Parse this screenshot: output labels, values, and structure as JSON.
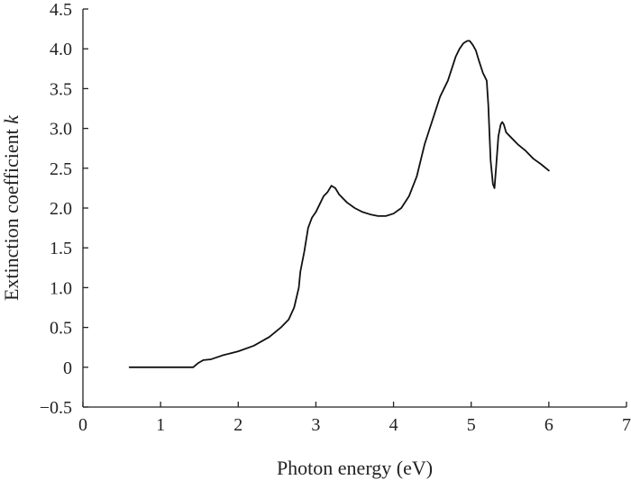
{
  "chart_data": {
    "type": "line",
    "title": "",
    "xlabel": "Photon energy (eV)",
    "ylabel_main": "Extinction coefficient ",
    "ylabel_var": "k",
    "xlim": [
      0,
      7
    ],
    "ylim": [
      -0.5,
      4.5
    ],
    "x_ticks": [
      0,
      1,
      2,
      3,
      4,
      5,
      6,
      7
    ],
    "x_tick_labels": [
      "0",
      "1",
      "2",
      "3",
      "4",
      "5",
      "6",
      "7"
    ],
    "y_ticks": [
      -0.5,
      0,
      0.5,
      1.0,
      1.5,
      2.0,
      2.5,
      3.0,
      3.5,
      4.0,
      4.5
    ],
    "y_tick_labels": [
      "−0.5",
      "0",
      "0.5",
      "1.0",
      "1.5",
      "2.0",
      "2.5",
      "3.0",
      "3.5",
      "4.0",
      "4.5"
    ],
    "grid": false,
    "colors": {
      "line": "#111111",
      "axis": "#222222"
    },
    "series": [
      {
        "x": [
          0.6,
          1.0,
          1.42,
          1.48,
          1.55,
          1.65,
          1.8,
          2.0,
          2.2,
          2.4,
          2.55,
          2.65,
          2.72,
          2.78,
          2.8,
          2.82,
          2.85,
          2.9,
          2.95,
          3.0,
          3.05,
          3.1,
          3.15,
          3.2,
          3.25,
          3.3,
          3.4,
          3.5,
          3.6,
          3.7,
          3.8,
          3.9,
          4.0,
          4.1,
          4.2,
          4.3,
          4.4,
          4.5,
          4.6,
          4.7,
          4.8,
          4.85,
          4.9,
          4.95,
          4.98,
          5.02,
          5.06,
          5.1,
          5.15,
          5.2,
          5.22,
          5.25,
          5.28,
          5.3,
          5.32,
          5.35,
          5.38,
          5.4,
          5.42,
          5.45,
          5.5,
          5.6,
          5.7,
          5.8,
          5.9,
          6.0
        ],
        "y": [
          0.0,
          0.0,
          0.0,
          0.05,
          0.09,
          0.1,
          0.15,
          0.2,
          0.27,
          0.38,
          0.5,
          0.6,
          0.75,
          1.0,
          1.2,
          1.3,
          1.45,
          1.75,
          1.88,
          1.95,
          2.05,
          2.15,
          2.2,
          2.28,
          2.25,
          2.17,
          2.07,
          2.0,
          1.95,
          1.92,
          1.9,
          1.9,
          1.93,
          2.0,
          2.15,
          2.4,
          2.8,
          3.1,
          3.4,
          3.6,
          3.9,
          4.0,
          4.07,
          4.1,
          4.1,
          4.05,
          3.98,
          3.85,
          3.7,
          3.6,
          3.3,
          2.6,
          2.3,
          2.25,
          2.5,
          2.9,
          3.05,
          3.08,
          3.05,
          2.95,
          2.9,
          2.8,
          2.72,
          2.62,
          2.55,
          2.47
        ]
      }
    ]
  }
}
